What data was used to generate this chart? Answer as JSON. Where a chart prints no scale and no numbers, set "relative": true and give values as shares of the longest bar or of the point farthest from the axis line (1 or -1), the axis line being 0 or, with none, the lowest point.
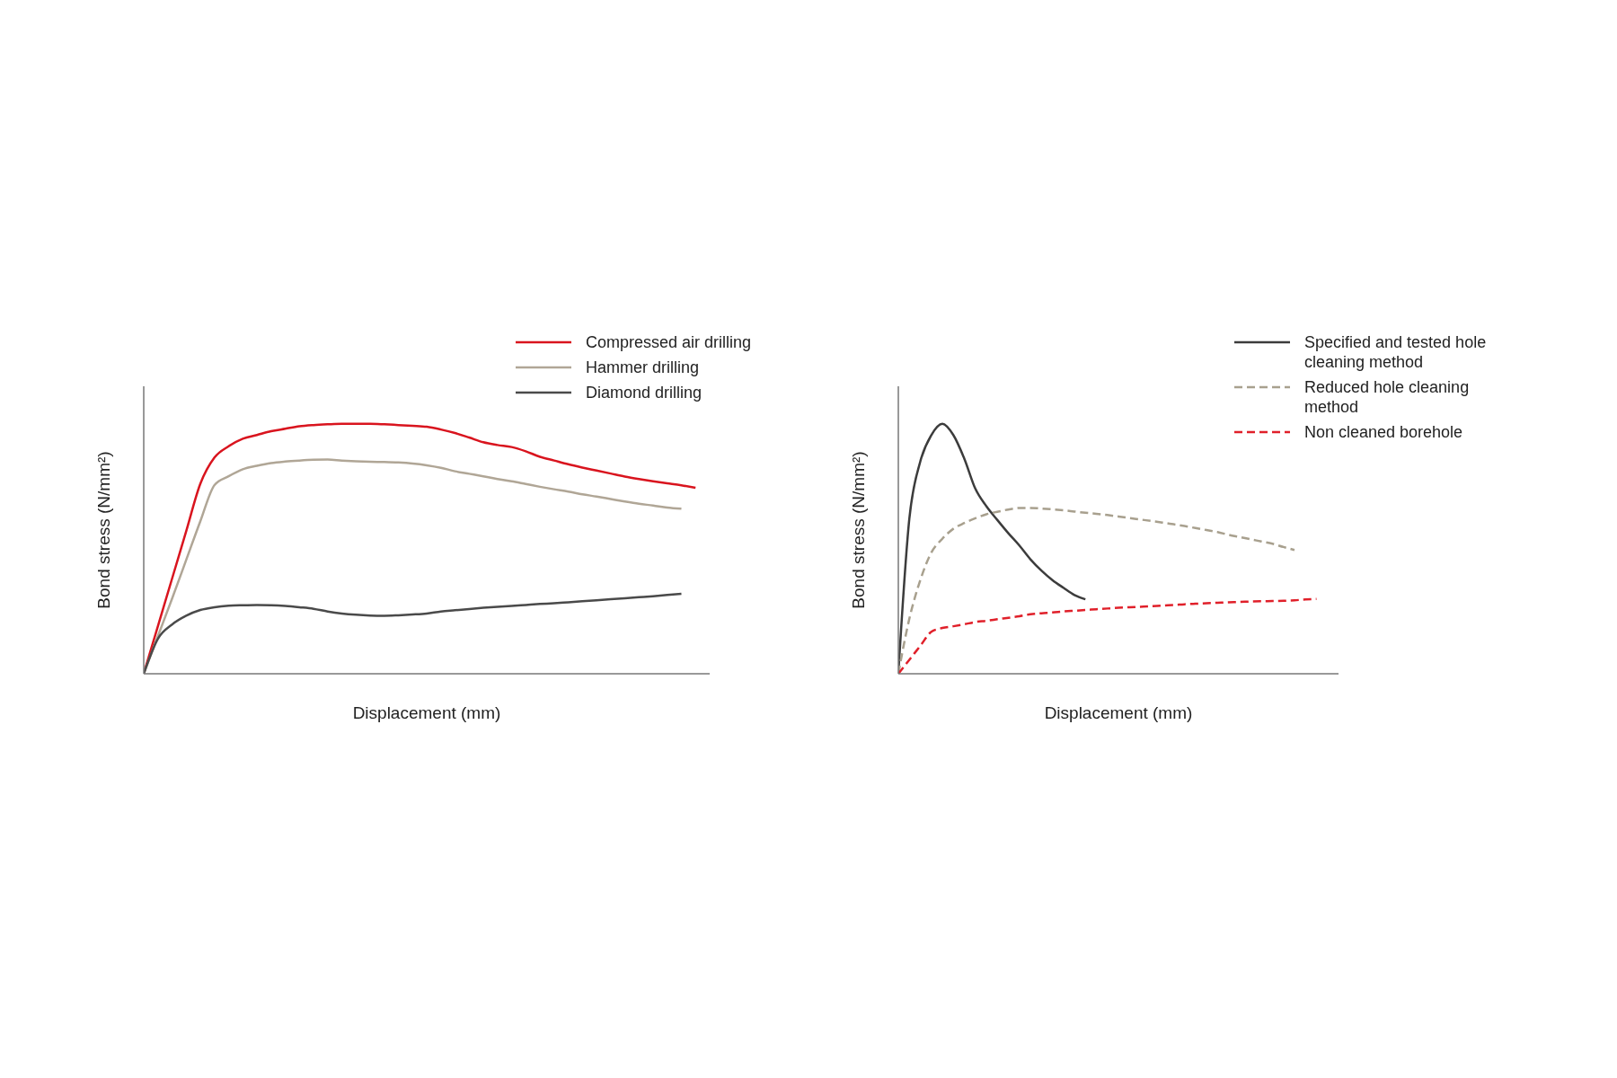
{
  "chart_data": [
    {
      "type": "line",
      "relative": true,
      "xlabel": "Displacement (mm)",
      "ylabel": "Bond stress  (N/mm²)",
      "legend": "top right",
      "grid": false,
      "marker": "none",
      "categories": [
        null,
        null,
        null,
        null,
        null,
        null,
        null,
        null,
        null,
        null,
        null,
        null,
        null,
        null,
        null,
        null,
        null,
        null,
        null,
        null,
        null,
        null,
        null,
        null,
        null,
        null,
        null,
        null,
        null,
        null,
        null,
        null,
        null,
        null,
        null,
        null,
        null,
        null,
        null,
        null,
        null
      ],
      "series": [
        {
          "name": "Compressed air drilling",
          "color": "#d9141e",
          "line_style": "solid",
          "values": [
            0,
            0.19,
            0.38,
            0.57,
            0.76,
            0.865,
            0.91,
            0.94,
            0.955,
            0.97,
            0.98,
            0.99,
            0.995,
            0.998,
            1.0,
            1.0,
            1.0,
            0.998,
            0.995,
            0.992,
            0.988,
            0.977,
            0.963,
            0.945,
            0.926,
            0.915,
            0.907,
            0.89,
            0.868,
            0.853,
            0.838,
            0.825,
            0.813,
            0.801,
            0.789,
            0.779,
            0.77,
            0.762,
            0.754,
            0.744,
            null
          ]
        },
        {
          "name": "Hammer drilling",
          "color": "#b0a696",
          "line_style": "solid",
          "values": [
            0,
            0.15,
            0.3,
            0.455,
            0.61,
            0.755,
            0.79,
            0.818,
            0.832,
            0.843,
            0.849,
            0.853,
            0.856,
            0.857,
            0.853,
            0.85,
            0.848,
            0.847,
            0.845,
            0.841,
            0.834,
            0.824,
            0.81,
            0.8,
            0.79,
            0.779,
            0.77,
            0.759,
            0.748,
            0.738,
            0.729,
            0.718,
            0.709,
            0.699,
            0.689,
            0.68,
            0.673,
            0.665,
            0.66,
            null,
            null
          ]
        },
        {
          "name": "Diamond drilling",
          "color": "#4a4a4a",
          "line_style": "solid",
          "values": [
            0,
            0.14,
            0.197,
            0.232,
            0.255,
            0.266,
            0.272,
            0.274,
            0.275,
            0.274,
            0.271,
            0.266,
            0.26,
            0.249,
            0.241,
            0.236,
            0.233,
            0.232,
            0.234,
            0.237,
            0.241,
            0.249,
            0.254,
            0.259,
            0.264,
            0.268,
            0.271,
            0.275,
            0.279,
            0.282,
            0.286,
            0.29,
            0.294,
            0.298,
            0.302,
            0.306,
            0.31,
            0.315,
            0.32,
            null,
            null
          ]
        }
      ]
    },
    {
      "type": "line",
      "relative": true,
      "xlabel": "Displacement (mm)",
      "ylabel": "Bond stress  (N/mm²)",
      "legend": "top right",
      "grid": false,
      "marker": "none",
      "categories": [
        null,
        null,
        null,
        null,
        null,
        null,
        null,
        null,
        null,
        null,
        null,
        null,
        null,
        null,
        null,
        null,
        null,
        null,
        null,
        null,
        null,
        null,
        null,
        null,
        null,
        null,
        null,
        null,
        null,
        null,
        null,
        null,
        null,
        null,
        null,
        null,
        null,
        null,
        null,
        null,
        null
      ],
      "series": [
        {
          "name": "Specified and tested hole cleaning method",
          "color": "#3c3c3c",
          "line_style": "solid",
          "values": [
            0,
            0.62,
            0.85,
            0.955,
            1.0,
            0.955,
            0.86,
            0.74,
            0.67,
            0.615,
            0.562,
            0.513,
            0.458,
            0.413,
            0.375,
            0.344,
            0.315,
            0.298,
            null,
            null,
            null,
            null,
            null,
            null,
            null,
            null,
            null,
            null,
            null,
            null,
            null,
            null,
            null,
            null,
            null,
            null,
            null,
            null,
            null,
            null,
            null
          ]
        },
        {
          "name": "Reduced hole cleaning method",
          "color": "#a8a08e",
          "line_style": "dashed",
          "values": [
            0,
            0.22,
            0.375,
            0.485,
            0.54,
            0.58,
            0.603,
            0.622,
            0.638,
            0.648,
            0.657,
            0.663,
            0.663,
            0.661,
            0.658,
            0.654,
            0.649,
            0.644,
            0.64,
            0.635,
            0.629,
            0.623,
            0.617,
            0.611,
            0.605,
            0.598,
            0.591,
            0.583,
            0.575,
            0.567,
            0.556,
            0.547,
            0.538,
            0.529,
            0.52,
            0.507,
            0.495,
            null,
            null,
            null,
            null
          ]
        },
        {
          "name": "Non cleaned borehole",
          "color": "#e0202a",
          "line_style": "dashed",
          "values": [
            0,
            0.056,
            0.112,
            0.168,
            0.183,
            0.19,
            0.198,
            0.207,
            0.212,
            0.218,
            0.224,
            0.23,
            0.238,
            0.242,
            0.245,
            0.249,
            0.252,
            0.255,
            0.258,
            0.261,
            0.264,
            0.266,
            0.268,
            0.27,
            0.273,
            0.275,
            0.278,
            0.28,
            0.282,
            0.284,
            0.286,
            0.287,
            0.289,
            0.29,
            0.291,
            0.292,
            0.294,
            0.297,
            0.299,
            null,
            null
          ]
        }
      ]
    }
  ]
}
